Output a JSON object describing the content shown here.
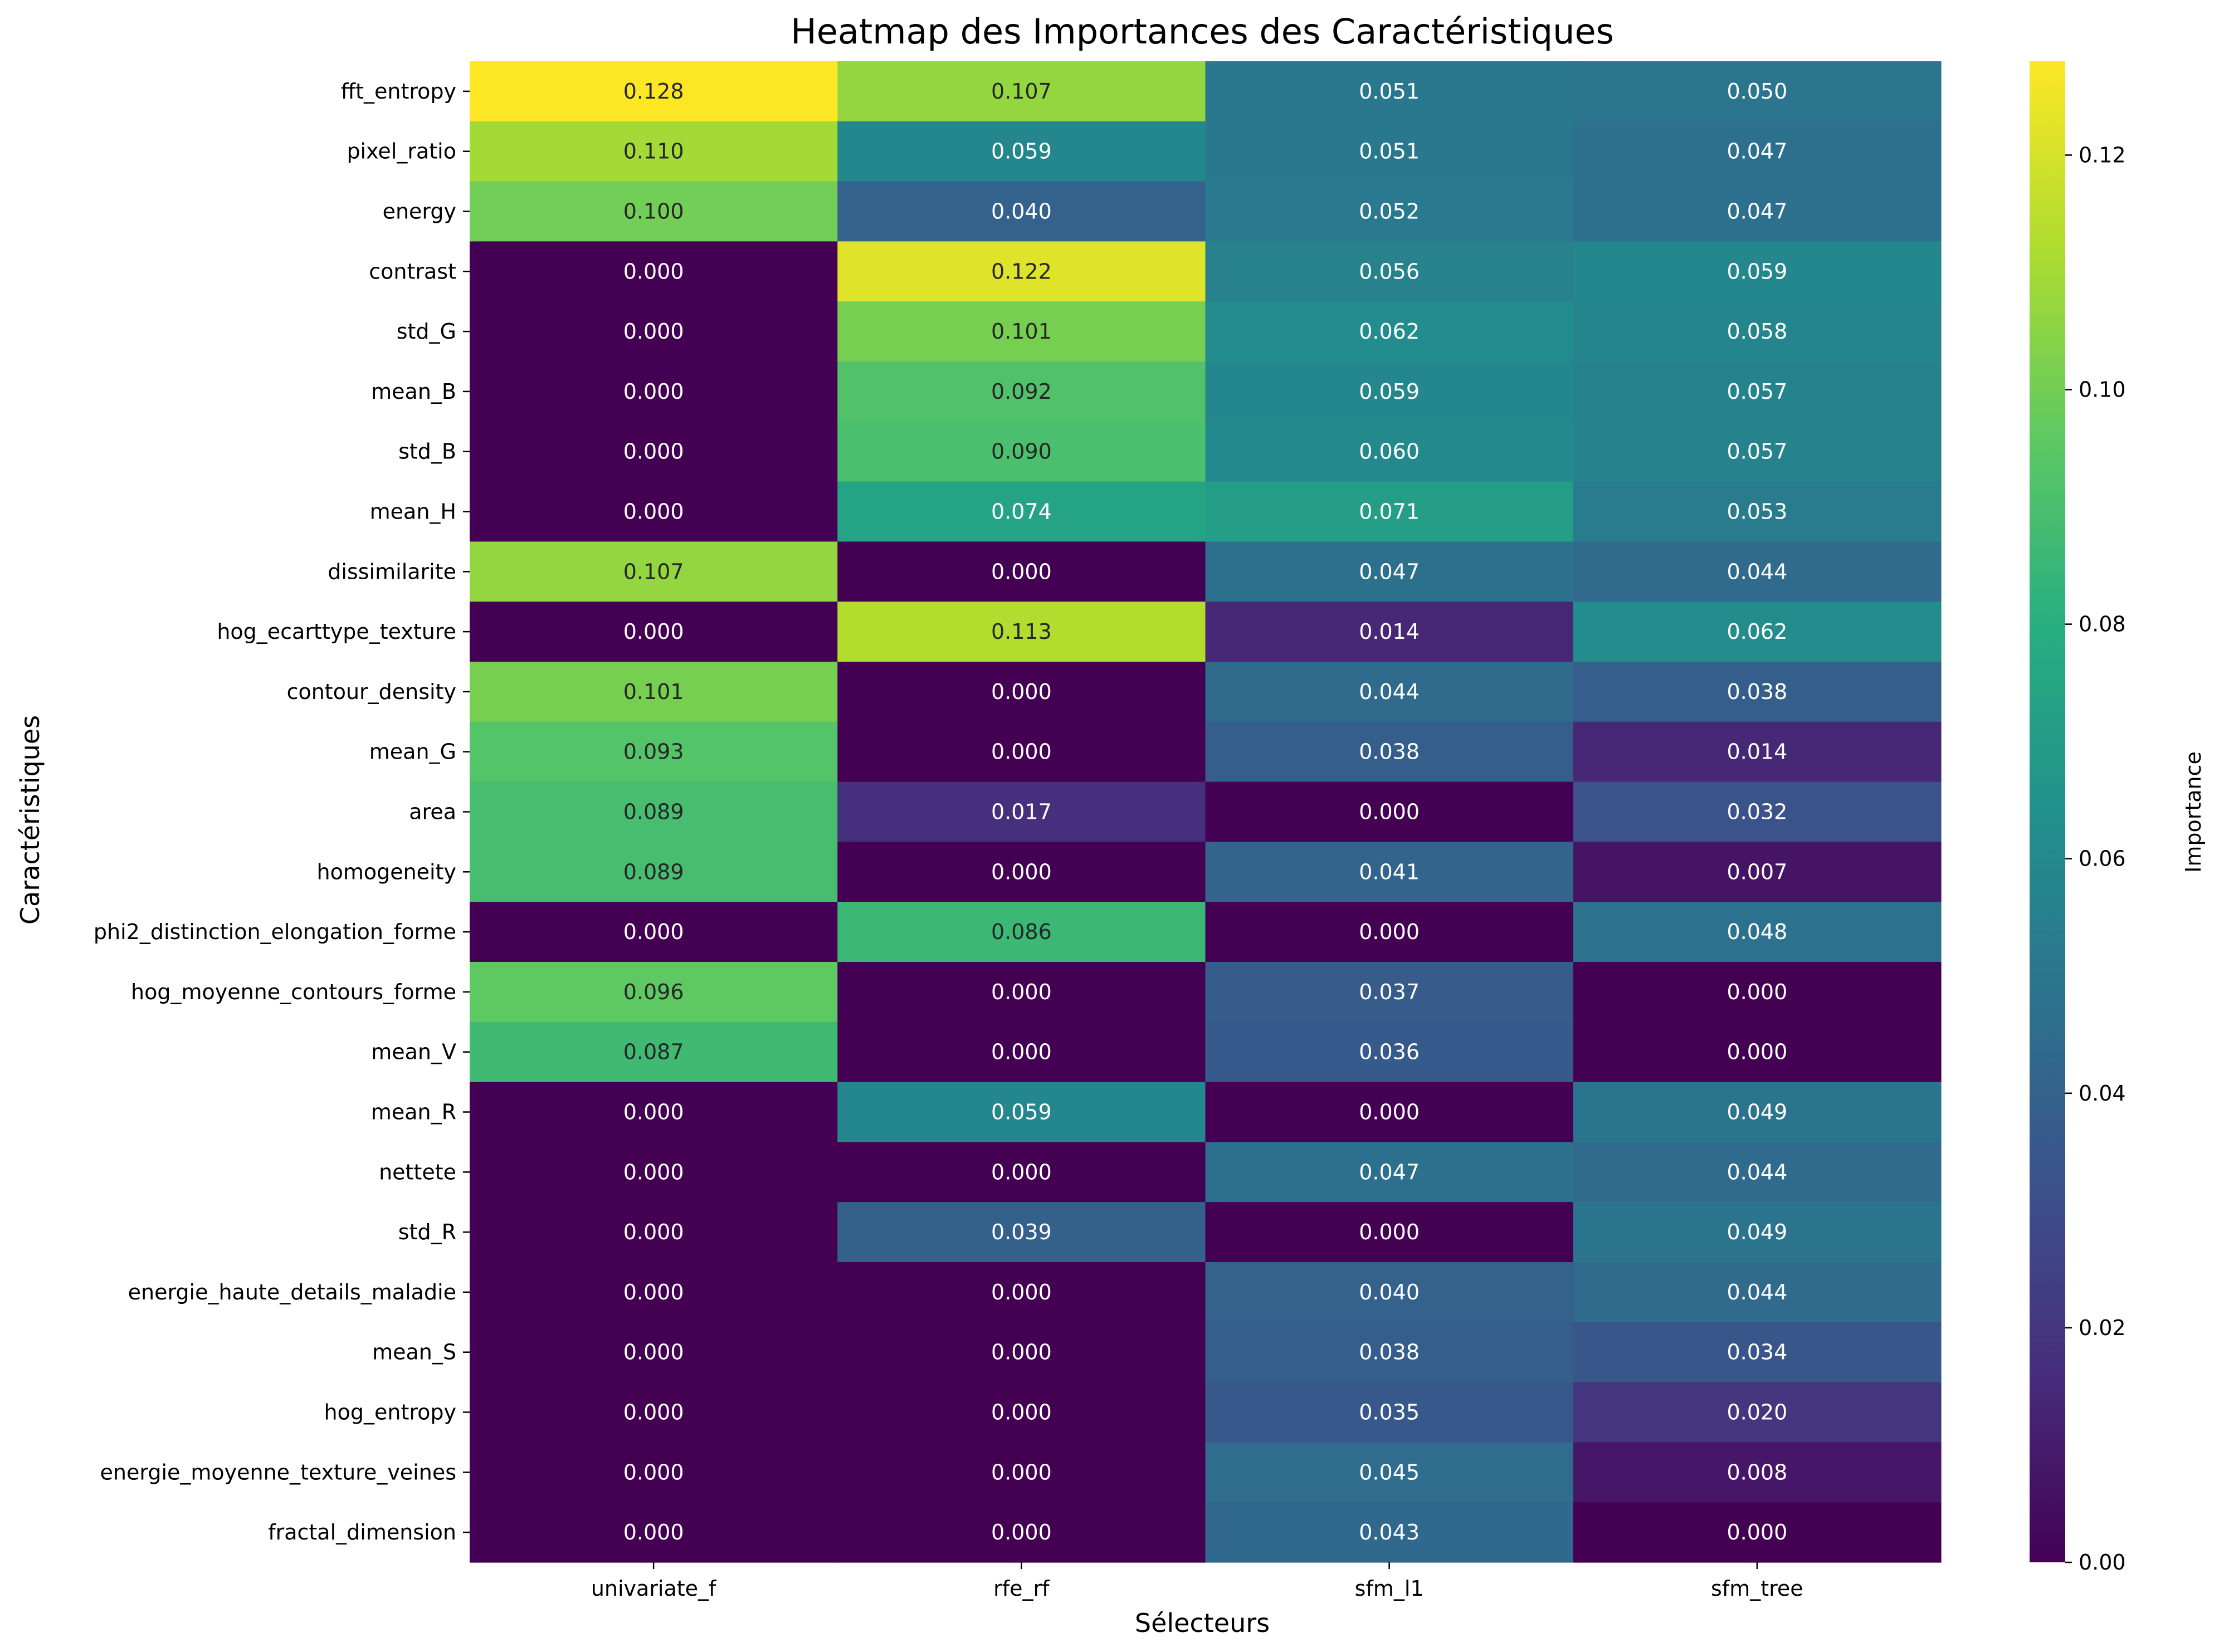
{
  "chart_data": {
    "type": "heatmap",
    "title": "Heatmap des Importances des Caractéristiques",
    "xlabel": "Sélecteurs",
    "ylabel": "Caractéristiques",
    "colorbar_label": "Importance",
    "colormap": "viridis",
    "vmin": 0.0,
    "vmax": 0.128,
    "colorbar_ticks": [
      "0.00",
      "0.02",
      "0.04",
      "0.06",
      "0.08",
      "0.10",
      "0.12"
    ],
    "colorbar_tick_values": [
      0.0,
      0.02,
      0.04,
      0.06,
      0.08,
      0.1,
      0.12
    ],
    "columns": [
      "univariate_f",
      "rfe_rf",
      "sfm_l1",
      "sfm_tree"
    ],
    "rows": [
      "fft_entropy",
      "pixel_ratio",
      "energy",
      "contrast",
      "std_G",
      "mean_B",
      "std_B",
      "mean_H",
      "dissimilarite",
      "hog_ecarttype_texture",
      "contour_density",
      "mean_G",
      "area",
      "homogeneity",
      "phi2_distinction_elongation_forme",
      "hog_moyenne_contours_forme",
      "mean_V",
      "mean_R",
      "nettete",
      "std_R",
      "energie_haute_details_maladie",
      "mean_S",
      "hog_entropy",
      "energie_moyenne_texture_veines",
      "fractal_dimension"
    ],
    "values": [
      [
        0.128,
        0.107,
        0.051,
        0.05
      ],
      [
        0.11,
        0.059,
        0.051,
        0.047
      ],
      [
        0.1,
        0.04,
        0.052,
        0.047
      ],
      [
        0.0,
        0.122,
        0.056,
        0.059
      ],
      [
        0.0,
        0.101,
        0.062,
        0.058
      ],
      [
        0.0,
        0.092,
        0.059,
        0.057
      ],
      [
        0.0,
        0.09,
        0.06,
        0.057
      ],
      [
        0.0,
        0.074,
        0.071,
        0.053
      ],
      [
        0.107,
        0.0,
        0.047,
        0.044
      ],
      [
        0.0,
        0.113,
        0.014,
        0.062
      ],
      [
        0.101,
        0.0,
        0.044,
        0.038
      ],
      [
        0.093,
        0.0,
        0.038,
        0.014
      ],
      [
        0.089,
        0.017,
        0.0,
        0.032
      ],
      [
        0.089,
        0.0,
        0.041,
        0.007
      ],
      [
        0.0,
        0.086,
        0.0,
        0.048
      ],
      [
        0.096,
        0.0,
        0.037,
        0.0
      ],
      [
        0.087,
        0.0,
        0.036,
        0.0
      ],
      [
        0.0,
        0.059,
        0.0,
        0.049
      ],
      [
        0.0,
        0.0,
        0.047,
        0.044
      ],
      [
        0.0,
        0.039,
        0.0,
        0.049
      ],
      [
        0.0,
        0.0,
        0.04,
        0.044
      ],
      [
        0.0,
        0.0,
        0.038,
        0.034
      ],
      [
        0.0,
        0.0,
        0.035,
        0.02
      ],
      [
        0.0,
        0.0,
        0.045,
        0.008
      ],
      [
        0.0,
        0.0,
        0.043,
        0.0
      ]
    ]
  }
}
